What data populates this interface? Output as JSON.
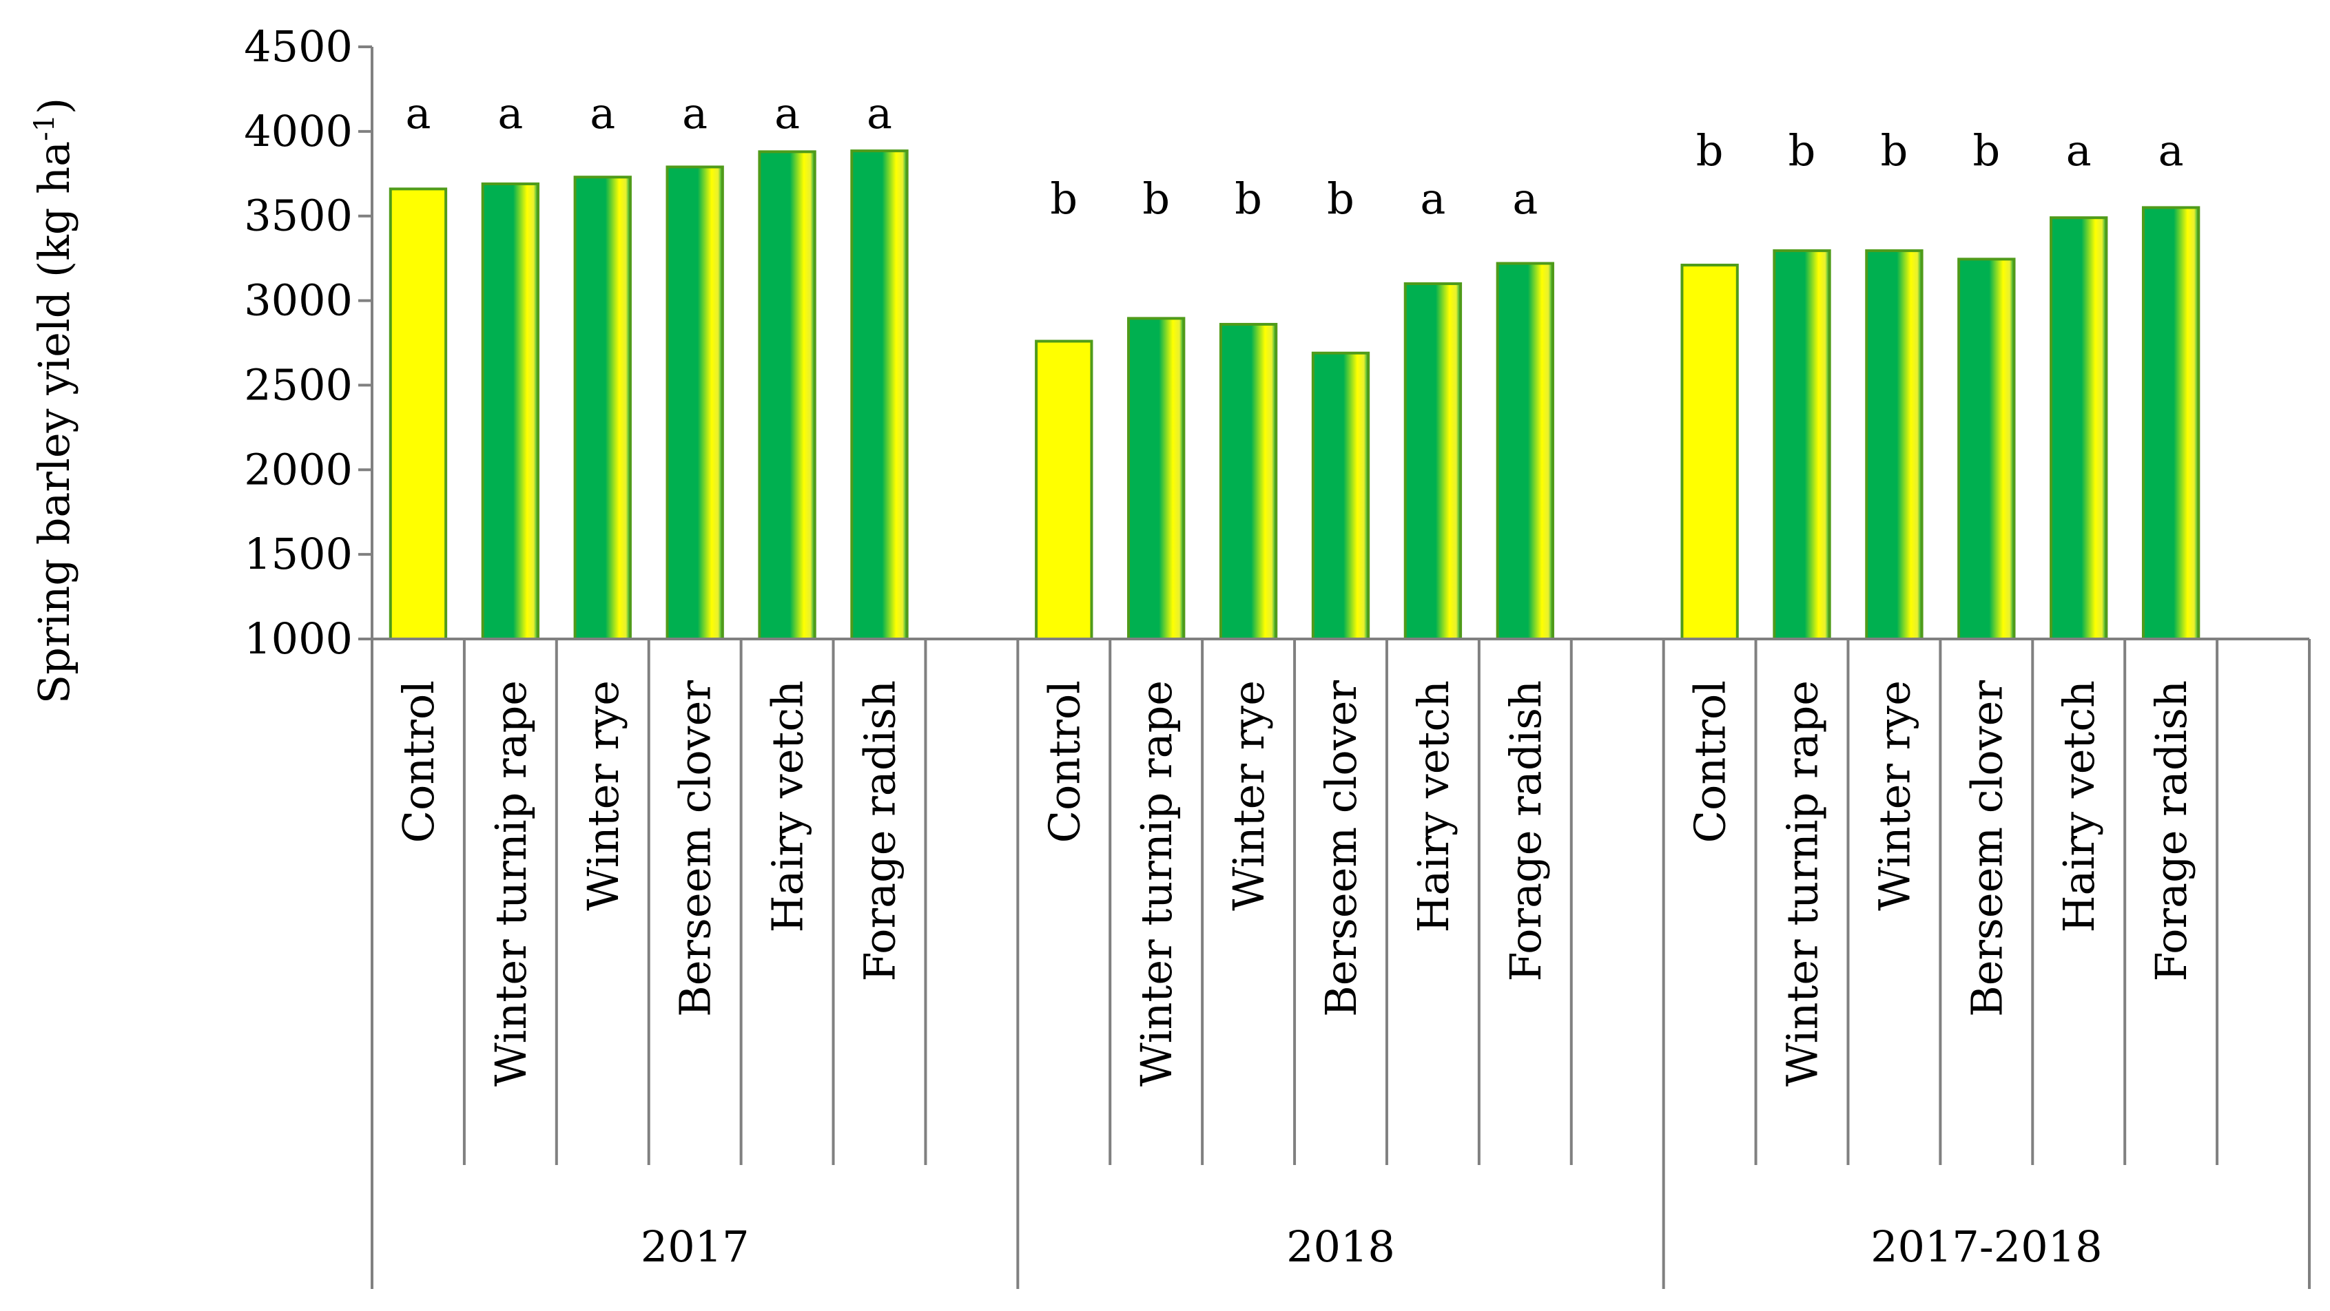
{
  "chart_data": {
    "type": "bar",
    "title": "",
    "ylabel": "Spring barley yield (kg ha",
    "ylabel_sup": "-1",
    "ylabel_close": ")",
    "ylim": [
      1000,
      4500
    ],
    "yticks": [
      1000,
      1500,
      2000,
      2500,
      3000,
      3500,
      4000,
      4500
    ],
    "categories": [
      "Control",
      "Winter turnip rape",
      "Winter rye",
      "Berseem clover",
      "Hairy vetch",
      "Forage radish"
    ],
    "groups": [
      {
        "label": "2017",
        "values": [
          3660,
          3690,
          3730,
          3790,
          3880,
          3885
        ],
        "letters": [
          "a",
          "a",
          "a",
          "a",
          "a",
          "a"
        ]
      },
      {
        "label": "2018",
        "values": [
          2760,
          2895,
          2860,
          2690,
          3100,
          3220
        ],
        "letters": [
          "b",
          "b",
          "b",
          "b",
          "a",
          "a"
        ]
      },
      {
        "label": "2017-2018",
        "values": [
          3210,
          3295,
          3295,
          3245,
          3490,
          3550
        ],
        "letters": [
          "b",
          "b",
          "b",
          "b",
          "a",
          "a"
        ]
      }
    ],
    "colors": {
      "control_fill": "#ffff00",
      "treatment_fill": "#00b050",
      "treatment_highlight": "#ffff00",
      "bar_stroke": "#4f9b1a",
      "axis": "#808080"
    }
  }
}
